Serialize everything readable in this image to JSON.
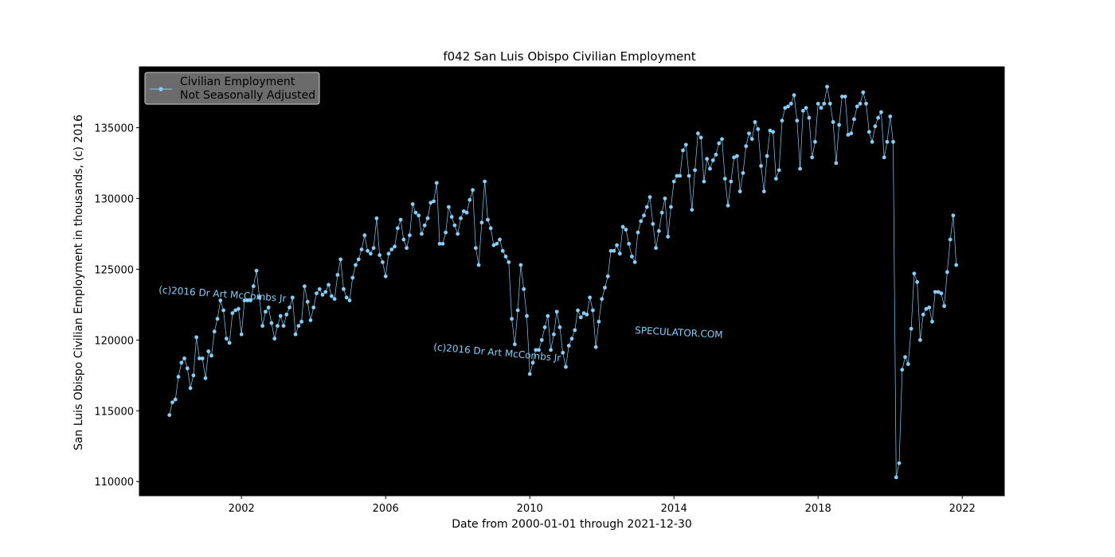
{
  "chart_data": {
    "type": "line",
    "title": "f042 San Luis Obispo Civilian Employment",
    "xlabel": "Date from 2000-01-01 through 2021-12-30",
    "ylabel": "San Luis Obispo Civilian Employment in thousands, (c) 2016",
    "xlim": [
      "1999-03-01",
      "2023-03-01"
    ],
    "ylim": [
      109000,
      139300
    ],
    "xticks": [
      "2002",
      "2006",
      "2010",
      "2014",
      "2018",
      "2022"
    ],
    "yticks": [
      110000,
      115000,
      120000,
      125000,
      130000,
      135000
    ],
    "background": "#000000",
    "line_color": "#87cefa",
    "grid": false,
    "legend": {
      "placement": "top-left",
      "entries": [
        "Civilian Employment",
        "Not Seasonally Adjusted"
      ]
    },
    "watermarks": [
      "(c)2016 Dr Art McCombs Jr",
      "(c)2016 Dr Art McCombs Jr",
      "SPECULATOR.COM"
    ],
    "series": [
      {
        "name": "Civilian Employment Not Seasonally Adjusted",
        "start": "2000-01",
        "frequency": "monthly",
        "values": [
          114700,
          115600,
          115800,
          117400,
          118400,
          118700,
          118000,
          116600,
          117500,
          120200,
          118700,
          118700,
          117300,
          119200,
          118900,
          120600,
          121500,
          122800,
          122100,
          120100,
          119800,
          121900,
          122100,
          122200,
          120400,
          122800,
          122800,
          122800,
          123800,
          124900,
          123000,
          121000,
          122000,
          122300,
          121200,
          120100,
          121000,
          121700,
          121000,
          121800,
          122300,
          123000,
          120400,
          121000,
          121300,
          123800,
          122700,
          121400,
          122300,
          123300,
          123600,
          123200,
          123400,
          123900,
          123100,
          122900,
          124600,
          125700,
          123600,
          123000,
          122800,
          124400,
          125300,
          125700,
          126400,
          127400,
          126300,
          126100,
          126500,
          128600,
          126000,
          125500,
          124500,
          126100,
          126400,
          126600,
          127900,
          128500,
          127100,
          126500,
          127400,
          129600,
          129000,
          128800,
          127500,
          128100,
          128600,
          129700,
          129800,
          131100,
          126800,
          126800,
          127600,
          129400,
          128700,
          128100,
          127500,
          128600,
          129100,
          129000,
          129900,
          130600,
          126500,
          125300,
          128300,
          131200,
          128500,
          127900,
          126700,
          126800,
          127100,
          126300,
          125900,
          125500,
          121500,
          119700,
          122100,
          125300,
          123600,
          121700,
          117600,
          118400,
          119300,
          119300,
          120000,
          120900,
          121700,
          119300,
          120400,
          122000,
          120900,
          119100,
          118100,
          119600,
          120100,
          120700,
          122100,
          121600,
          121900,
          121800,
          123000,
          122100,
          119500,
          121300,
          122900,
          123700,
          124500,
          126300,
          126300,
          126700,
          126100,
          128000,
          127800,
          126800,
          125900,
          125500,
          127600,
          128400,
          128800,
          129400,
          130100,
          128200,
          126500,
          127700,
          129000,
          130000,
          127300,
          129400,
          131200,
          131600,
          131600,
          133400,
          133800,
          131600,
          129200,
          132000,
          134600,
          134300,
          131200,
          132800,
          132100,
          132700,
          133100,
          133900,
          134200,
          131400,
          129500,
          131200,
          132900,
          133000,
          130500,
          131800,
          133700,
          134600,
          134200,
          135400,
          134900,
          132300,
          130500,
          133000,
          134800,
          134700,
          131400,
          132000,
          135500,
          136400,
          136500,
          136700,
          137300,
          135500,
          132100,
          136200,
          136400,
          135700,
          132900,
          134000,
          136700,
          136400,
          136700,
          137900,
          136700,
          135400,
          132500,
          135200,
          137200,
          137200,
          134500,
          134600,
          135600,
          136500,
          136700,
          137500,
          136700,
          134700,
          134000,
          135100,
          135700,
          136100,
          132900,
          134000,
          135800,
          134000,
          110300,
          111300,
          117900,
          118800,
          118300,
          120800,
          124700,
          124100,
          120000,
          121800,
          122200,
          122300,
          121300,
          123400,
          123400,
          123300,
          122400,
          124800,
          127100,
          128800,
          125300
        ]
      }
    ]
  }
}
